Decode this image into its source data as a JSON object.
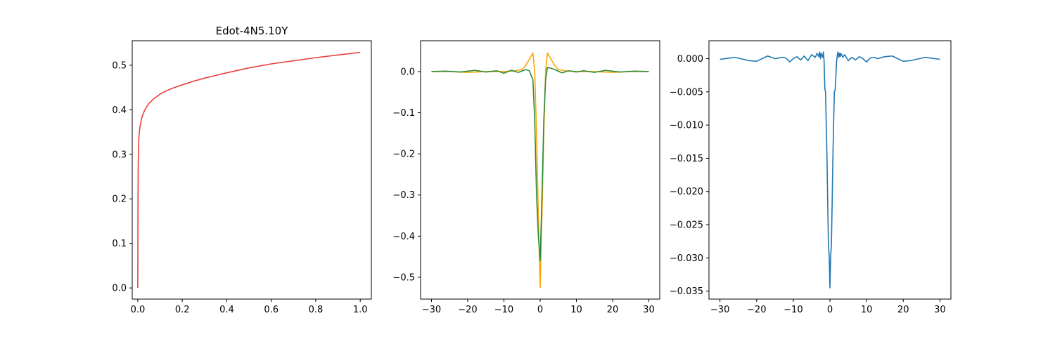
{
  "chart_data": [
    {
      "type": "line",
      "title": "Edot-4N5.10Y",
      "xlabel": "",
      "ylabel": "",
      "xlim": [
        -0.025,
        1.05
      ],
      "ylim": [
        -0.025,
        0.555
      ],
      "grid": false,
      "xticks": [
        0.0,
        0.2,
        0.4,
        0.6,
        0.8,
        1.0
      ],
      "xtick_labels": [
        "0.0",
        "0.2",
        "0.4",
        "0.6",
        "0.8",
        "1.0"
      ],
      "yticks": [
        0.0,
        0.1,
        0.2,
        0.3,
        0.4,
        0.5
      ],
      "ytick_labels": [
        "0.0",
        "0.1",
        "0.2",
        "0.3",
        "0.4",
        "0.5"
      ],
      "series": [
        {
          "color": "#e8403c",
          "x": [
            0.0,
            0.001,
            0.002,
            0.004,
            0.006,
            0.01,
            0.015,
            0.02,
            0.03,
            0.04,
            0.05,
            0.07,
            0.1,
            0.13,
            0.16,
            0.2,
            0.25,
            0.3,
            0.35,
            0.4,
            0.5,
            0.6,
            0.7,
            0.8,
            0.9,
            1.0
          ],
          "y": [
            0.0,
            0.2,
            0.28,
            0.33,
            0.345,
            0.362,
            0.375,
            0.385,
            0.398,
            0.407,
            0.414,
            0.424,
            0.435,
            0.443,
            0.449,
            0.456,
            0.464,
            0.471,
            0.477,
            0.483,
            0.494,
            0.503,
            0.51,
            0.517,
            0.523,
            0.529
          ]
        }
      ]
    },
    {
      "type": "line",
      "title": "",
      "xlabel": "",
      "ylabel": "",
      "xlim": [
        -33,
        33
      ],
      "ylim": [
        -0.553,
        0.075
      ],
      "grid": false,
      "xticks": [
        -30,
        -20,
        -10,
        0,
        10,
        20,
        30
      ],
      "xtick_labels": [
        "−30",
        "−20",
        "−10",
        "0",
        "10",
        "20",
        "30"
      ],
      "yticks": [
        0.0,
        -0.1,
        -0.2,
        -0.3,
        -0.4,
        -0.5
      ],
      "ytick_labels": [
        "0.0",
        "−0.1",
        "−0.2",
        "−0.3",
        "−0.4",
        "−0.5"
      ],
      "series": [
        {
          "color": "#ffa500",
          "x": [
            -30,
            -25,
            -20,
            -15,
            -10,
            -7,
            -5,
            -4,
            -3,
            -2,
            -1.5,
            -1,
            -0.5,
            0,
            0.5,
            1,
            1.5,
            2,
            3,
            4,
            5,
            7,
            10,
            15,
            20,
            25,
            30
          ],
          "y": [
            0.0,
            0.0,
            -0.002,
            0.0,
            0.0,
            0.002,
            0.005,
            0.015,
            0.03,
            0.045,
            0.0,
            -0.15,
            -0.35,
            -0.525,
            -0.35,
            -0.15,
            0.0,
            0.045,
            0.03,
            0.015,
            0.005,
            0.002,
            0.0,
            0.0,
            -0.002,
            0.0,
            0.0
          ]
        },
        {
          "color": "#2e8b3e",
          "x": [
            -30,
            -26,
            -22,
            -18,
            -15,
            -12,
            -10,
            -8,
            -6,
            -4,
            -3,
            -2,
            -1.5,
            -1,
            -0.5,
            0,
            0.5,
            1,
            1.5,
            2,
            3,
            4,
            6,
            8,
            10,
            12,
            15,
            18,
            22,
            26,
            30
          ],
          "y": [
            0.0,
            0.001,
            -0.001,
            0.003,
            -0.001,
            0.002,
            -0.004,
            0.003,
            -0.002,
            0.005,
            0.002,
            -0.02,
            -0.12,
            -0.3,
            -0.4,
            -0.46,
            -0.3,
            -0.12,
            -0.02,
            0.01,
            0.008,
            0.005,
            -0.003,
            0.002,
            -0.001,
            0.002,
            -0.002,
            0.003,
            -0.001,
            0.001,
            0.0
          ]
        }
      ]
    },
    {
      "type": "line",
      "title": "",
      "xlabel": "",
      "ylabel": "",
      "xlim": [
        -33,
        33
      ],
      "ylim": [
        -0.0362,
        0.0027
      ],
      "grid": false,
      "xticks": [
        -30,
        -20,
        -10,
        0,
        10,
        20,
        30
      ],
      "xtick_labels": [
        "−30",
        "−20",
        "−10",
        "0",
        "10",
        "20",
        "30"
      ],
      "yticks": [
        0.0,
        -0.005,
        -0.01,
        -0.015,
        -0.02,
        -0.025,
        -0.03,
        -0.035
      ],
      "ytick_labels": [
        "0.000",
        "−0.005",
        "−0.010",
        "−0.015",
        "−0.020",
        "−0.025",
        "−0.030",
        "−0.035"
      ],
      "series": [
        {
          "color": "#1f77b4",
          "x": [
            -30,
            -26,
            -22,
            -20,
            -17,
            -15,
            -13,
            -12,
            -11,
            -10,
            -9,
            -8,
            -7,
            -6,
            -5,
            -4,
            -3.5,
            -3,
            -2.8,
            -2.6,
            -2.4,
            -2.2,
            -2.0,
            -1.8,
            -1.6,
            -1.4,
            -1.2,
            -1.0,
            -0.8,
            -0.6,
            -0.4,
            -0.2,
            0,
            0.2,
            0.4,
            0.6,
            0.8,
            1.0,
            1.2,
            1.4,
            1.6,
            1.8,
            2.0,
            2.2,
            2.4,
            2.6,
            2.8,
            3.0,
            3.5,
            4,
            5,
            6,
            7,
            8,
            9,
            10,
            11,
            12,
            13,
            15,
            17,
            20,
            22,
            26,
            30
          ],
          "y": [
            -0.0001,
            0.0002,
            -0.0003,
            -0.0004,
            0.0004,
            0.0,
            0.0002,
            0.0001,
            -0.0005,
            0.0,
            0.0003,
            -0.0002,
            0.0004,
            -0.0003,
            0.0006,
            0.0002,
            0.0008,
            0.0003,
            0.001,
            0.0,
            0.0008,
            0.0005,
            0.0002,
            0.001,
            -0.0003,
            -0.0045,
            -0.005,
            -0.01,
            -0.015,
            -0.022,
            -0.028,
            -0.0298,
            -0.0345,
            -0.0298,
            -0.028,
            -0.022,
            -0.015,
            -0.01,
            -0.005,
            -0.0048,
            -0.003,
            -0.0005,
            0.0005,
            0.001,
            0.0002,
            0.0008,
            0.0003,
            0.0008,
            0.0002,
            0.0006,
            -0.0003,
            0.0002,
            -0.0002,
            0.0003,
            0.0,
            -0.0005,
            0.0001,
            0.0002,
            0.0,
            0.0003,
            0.0004,
            -0.0004,
            -0.0003,
            0.0002,
            -0.0001
          ]
        }
      ]
    }
  ]
}
